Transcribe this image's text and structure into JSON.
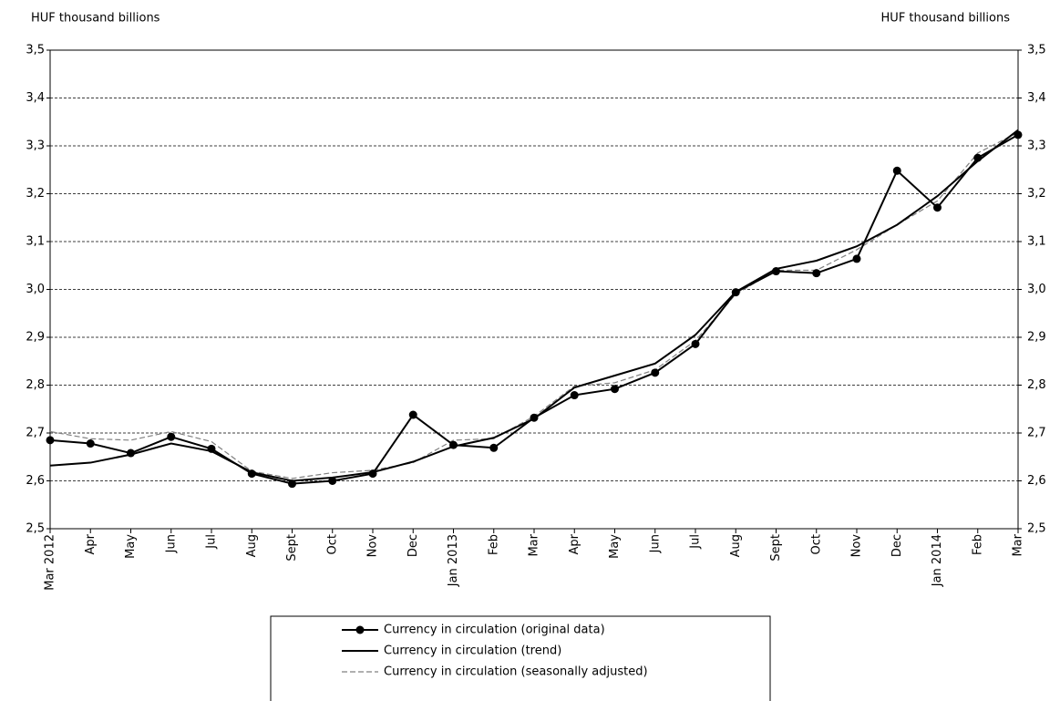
{
  "chart_data": {
    "type": "line",
    "y_label": "HUF thousand billions",
    "y2_label": "HUF thousand billions",
    "categories": [
      "Mar 2012",
      "Apr",
      "May",
      "Jun",
      "Jul",
      "Aug",
      "Sept",
      "Oct",
      "Nov",
      "Dec",
      "Jan 2013",
      "Feb",
      "Mar",
      "Apr",
      "May",
      "Jun",
      "Jul",
      "Aug",
      "Sept",
      "Oct",
      "Nov",
      "Dec",
      "Jan 2014",
      "Feb",
      "Mar"
    ],
    "series": [
      {
        "name": "Currency in circulation (original data)",
        "color": "#000000",
        "style": "solid",
        "marker": "circle",
        "values": [
          2.685,
          2.678,
          2.658,
          2.692,
          2.667,
          2.615,
          2.594,
          2.6,
          2.615,
          2.738,
          2.675,
          2.669,
          2.732,
          2.779,
          2.792,
          2.826,
          2.886,
          2.994,
          3.038,
          3.034,
          3.064,
          3.248,
          3.171,
          3.275,
          3.323
        ]
      },
      {
        "name": "Currency in circulation (trend)",
        "color": "#000000",
        "style": "solid",
        "values": [
          2.632,
          2.638,
          2.655,
          2.678,
          2.662,
          2.618,
          2.6,
          2.607,
          2.618,
          2.64,
          2.672,
          2.69,
          2.73,
          2.795,
          2.82,
          2.845,
          2.905,
          2.995,
          3.043,
          3.06,
          3.09,
          3.135,
          3.195,
          3.268,
          3.333
        ]
      },
      {
        "name": "Currency in circulation (seasonally adjusted)",
        "color": "#808080",
        "style": "dashed",
        "values": [
          2.703,
          2.688,
          2.685,
          2.703,
          2.682,
          2.62,
          2.605,
          2.617,
          2.622,
          2.638,
          2.685,
          2.688,
          2.735,
          2.798,
          2.805,
          2.832,
          2.893,
          2.99,
          3.04,
          3.04,
          3.083,
          3.135,
          3.185,
          3.285,
          3.328
        ]
      }
    ],
    "ylim": [
      2.5,
      3.5
    ],
    "yticks": [
      {
        "value": 2.5,
        "label": "2,5"
      },
      {
        "value": 2.6,
        "label": "2,6"
      },
      {
        "value": 2.7,
        "label": "2,7"
      },
      {
        "value": 2.8,
        "label": "2,8"
      },
      {
        "value": 2.9,
        "label": "2,9"
      },
      {
        "value": 3.0,
        "label": "3,0"
      },
      {
        "value": 3.1,
        "label": "3,1"
      },
      {
        "value": 3.2,
        "label": "3,2"
      },
      {
        "value": 3.3,
        "label": "3,3"
      },
      {
        "value": 3.4,
        "label": "3,4"
      },
      {
        "value": 3.5,
        "label": "3,5"
      }
    ],
    "y2lim": [
      2.5,
      3.5
    ],
    "y2ticks": [
      {
        "value": 2.5,
        "label": "2,5"
      },
      {
        "value": 2.6,
        "label": "2,6"
      },
      {
        "value": 2.7,
        "label": "2,7"
      },
      {
        "value": 2.8,
        "label": "2,8"
      },
      {
        "value": 2.9,
        "label": "2,9"
      },
      {
        "value": 3.0,
        "label": "3,0"
      },
      {
        "value": 3.1,
        "label": "3,1"
      },
      {
        "value": 3.2,
        "label": "3,2"
      },
      {
        "value": 3.3,
        "label": "3,3"
      },
      {
        "value": 3.4,
        "label": "3,4"
      },
      {
        "value": 3.5,
        "label": "3,5"
      }
    ],
    "grid": true,
    "legend": "bottom"
  }
}
